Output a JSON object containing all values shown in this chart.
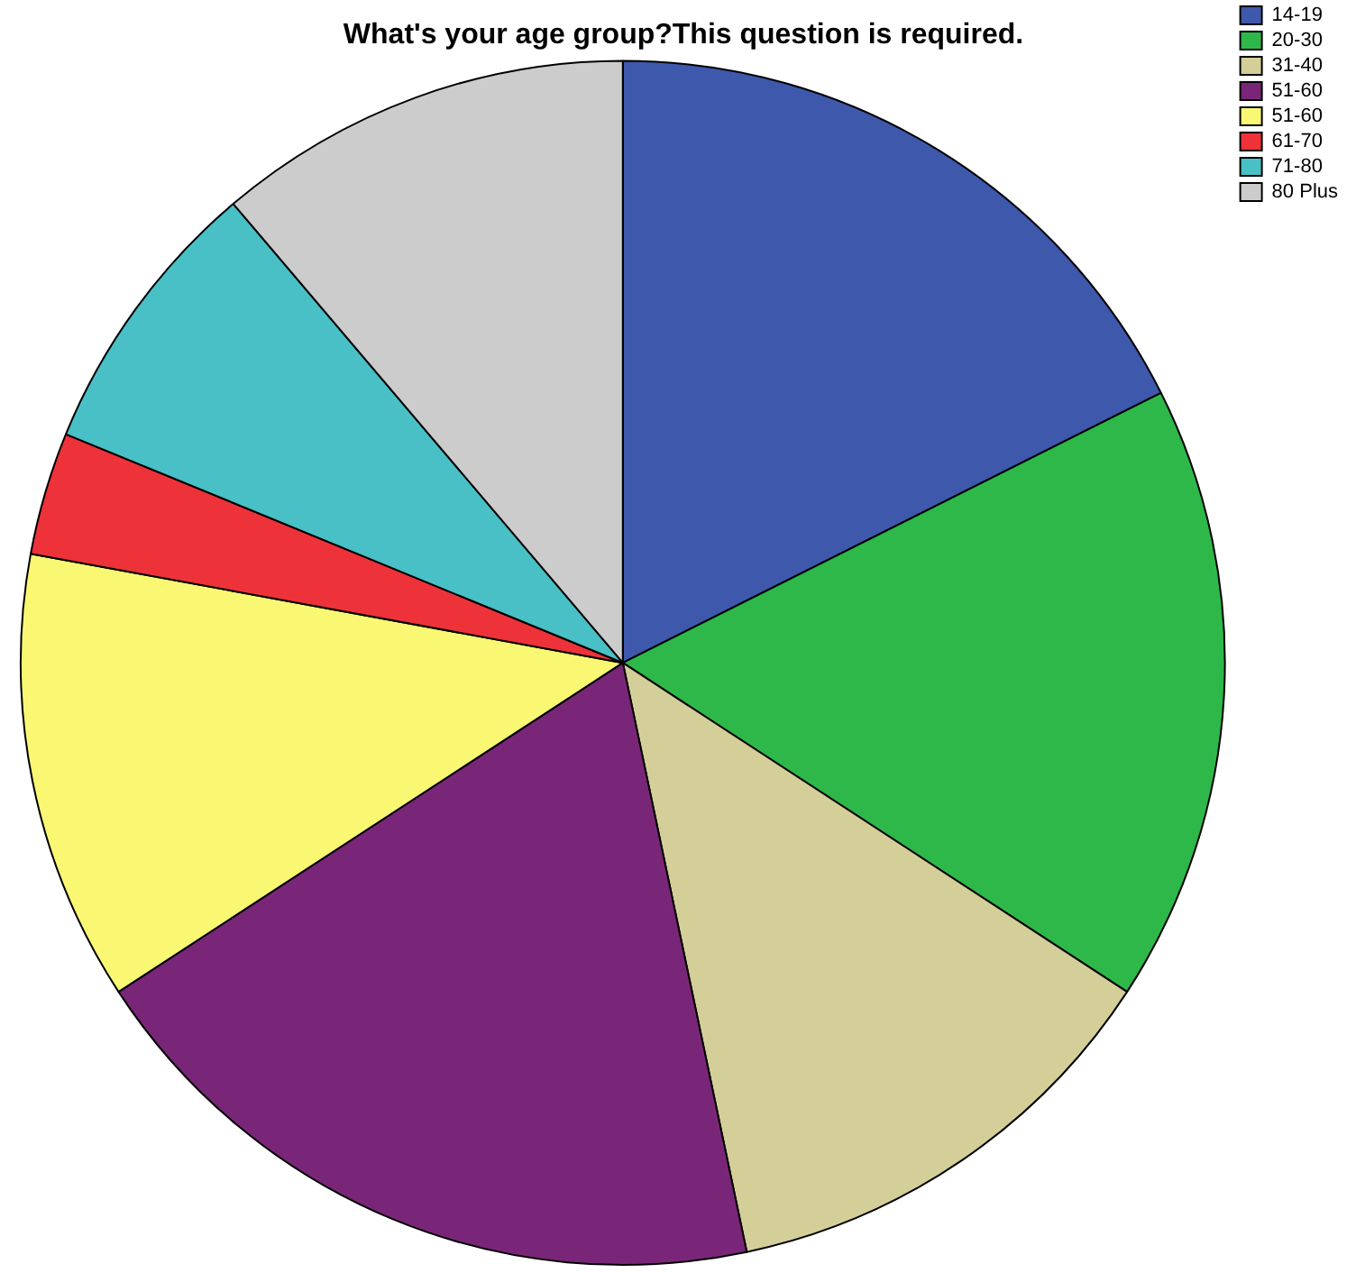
{
  "chart_data": {
    "type": "pie",
    "title": "What's your age group?This question is required.",
    "categories": [
      "14-19",
      "20-30",
      "31-40",
      "51-60",
      "51-60",
      "61-70",
      "71-80",
      "80 Plus"
    ],
    "values": [
      17.6,
      16.6,
      12.5,
      19.1,
      12.1,
      3.3,
      7.6,
      11.2
    ],
    "colors": [
      "#3e58ac",
      "#2eb84a",
      "#d4cf99",
      "#7a2678",
      "#faf773",
      "#ee3239",
      "#48c0c6",
      "#cccccc"
    ],
    "legend": "top right"
  }
}
